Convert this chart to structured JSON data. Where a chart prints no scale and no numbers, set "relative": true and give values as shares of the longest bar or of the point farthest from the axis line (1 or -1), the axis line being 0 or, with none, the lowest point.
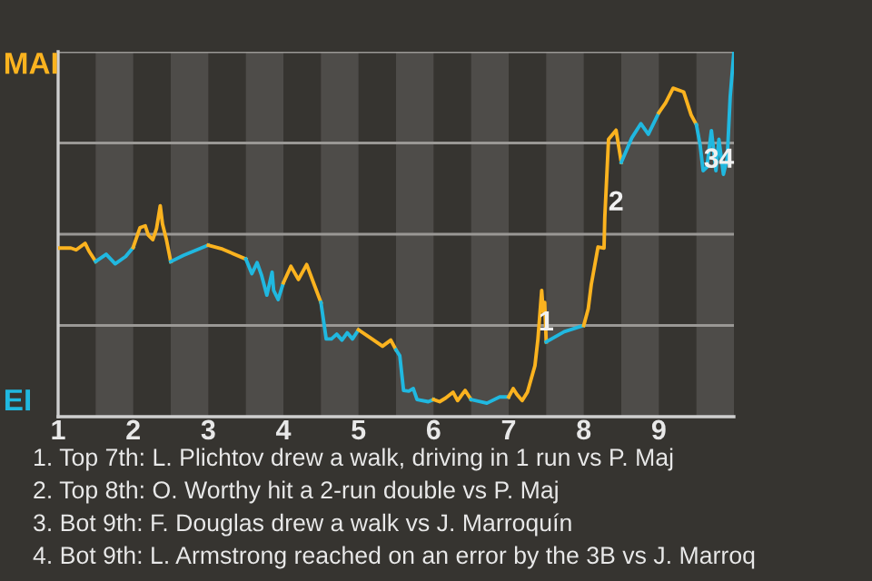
{
  "chart_data": {
    "type": "line",
    "relative": true,
    "xlim": [
      1,
      10
    ],
    "xticks": [
      1,
      2,
      3,
      4,
      5,
      6,
      7,
      8,
      9
    ],
    "marker": "none",
    "line_style": "solid",
    "series": [
      {
        "color": "#fbb31f",
        "x": [
          1,
          1.17,
          1.24,
          1.36,
          1.41,
          1.5
        ],
        "values": [
          0.462,
          0.462,
          0.457,
          0.475,
          0.454,
          0.425
        ]
      },
      {
        "color": "#20b8e0",
        "x": [
          1.5,
          1.64,
          1.76,
          1.9,
          2
        ],
        "values": [
          0.425,
          0.445,
          0.419,
          0.439,
          0.464
        ]
      },
      {
        "color": "#fbb31f",
        "x": [
          2,
          2.09,
          2.16,
          2.2,
          2.26,
          2.31,
          2.36,
          2.39,
          2.44,
          2.5
        ],
        "values": [
          0.464,
          0.518,
          0.523,
          0.498,
          0.485,
          0.515,
          0.578,
          0.528,
          0.487,
          0.425
        ]
      },
      {
        "color": "#20b8e0",
        "x": [
          2.5,
          2.67,
          3
        ],
        "values": [
          0.425,
          0.442,
          0.47
        ]
      },
      {
        "color": "#fbb31f",
        "x": [
          3,
          3.19,
          3.5
        ],
        "values": [
          0.47,
          0.459,
          0.432
        ]
      },
      {
        "color": "#20b8e0",
        "x": [
          3.5,
          3.58,
          3.65,
          3.71,
          3.78,
          3.85,
          3.87,
          3.93,
          4
        ],
        "values": [
          0.432,
          0.392,
          0.422,
          0.387,
          0.333,
          0.396,
          0.346,
          0.321,
          0.367
        ]
      },
      {
        "color": "#fbb31f",
        "x": [
          4,
          4.1,
          4.2,
          4.31,
          4.41,
          4.5
        ],
        "values": [
          0.367,
          0.412,
          0.376,
          0.417,
          0.362,
          0.313
        ]
      },
      {
        "color": "#20b8e0",
        "x": [
          4.5,
          4.57,
          4.64,
          4.71,
          4.78,
          4.85,
          4.92,
          5
        ],
        "values": [
          0.313,
          0.213,
          0.213,
          0.226,
          0.21,
          0.23,
          0.213,
          0.238
        ]
      },
      {
        "color": "#fbb31f",
        "x": [
          5,
          5.18,
          5.32,
          5.43,
          5.5
        ],
        "values": [
          0.238,
          0.213,
          0.193,
          0.21,
          0.183
        ]
      },
      {
        "color": "#20b8e0",
        "x": [
          5.5,
          5.55,
          5.6,
          5.67,
          5.73,
          5.78,
          5.93,
          6
        ],
        "values": [
          0.183,
          0.167,
          0.072,
          0.07,
          0.077,
          0.047,
          0.041,
          0.047
        ]
      },
      {
        "color": "#fbb31f",
        "x": [
          6,
          6.08,
          6.16,
          6.26,
          6.32,
          6.42,
          6.5
        ],
        "values": [
          0.047,
          0.041,
          0.051,
          0.067,
          0.044,
          0.072,
          0.047
        ]
      },
      {
        "color": "#20b8e0",
        "x": [
          6.5,
          6.71,
          6.88,
          7
        ],
        "values": [
          0.047,
          0.037,
          0.054,
          0.054
        ]
      },
      {
        "color": "#fbb31f",
        "x": [
          7,
          7.06,
          7.11,
          7.18,
          7.25,
          7.35,
          7.39,
          7.44,
          7.46,
          7.48,
          7.5
        ],
        "values": [
          0.054,
          0.077,
          0.061,
          0.044,
          0.067,
          0.14,
          0.213,
          0.346,
          0.288,
          0.313,
          0.205
        ]
      },
      {
        "color": "#20b8e0",
        "x": [
          7.5,
          7.74,
          8
        ],
        "values": [
          0.205,
          0.233,
          0.25
        ]
      },
      {
        "color": "#fbb31f",
        "x": [
          8,
          8.06,
          8.1,
          8.19,
          8.27,
          8.28,
          8.33,
          8.43,
          8.5
        ],
        "values": [
          0.25,
          0.296,
          0.362,
          0.465,
          0.462,
          0.545,
          0.76,
          0.785,
          0.697
        ]
      },
      {
        "color": "#20b8e0",
        "x": [
          8.5,
          8.64,
          8.76,
          8.86,
          9
        ],
        "values": [
          0.697,
          0.764,
          0.803,
          0.774,
          0.833
        ]
      },
      {
        "color": "#fbb31f",
        "x": [
          9,
          9.09,
          9.19,
          9.33,
          9.43,
          9.5
        ],
        "values": [
          0.833,
          0.86,
          0.9,
          0.89,
          0.827,
          0.8
        ]
      },
      {
        "color": "#20b8e0",
        "x": [
          9.5,
          9.55,
          9.59,
          9.64,
          9.7,
          9.76,
          9.8,
          9.86,
          9.91,
          9.95,
          10
        ],
        "values": [
          0.8,
          0.744,
          0.674,
          0.684,
          0.784,
          0.674,
          0.76,
          0.664,
          0.707,
          0.876,
          1
        ]
      }
    ],
    "ref_lines": [
      {
        "axis": "y",
        "value": 0.25,
        "color": "#9a9895"
      },
      {
        "axis": "y",
        "value": 0.5,
        "color": "#9a9895"
      },
      {
        "axis": "y",
        "value": 0.75,
        "color": "#9a9895"
      },
      {
        "axis": "y",
        "value": 1,
        "color": "#9a9895"
      }
    ],
    "bands": [
      {
        "axis": "x",
        "from": 1.5,
        "to": 2,
        "color": "#4e4c49"
      },
      {
        "axis": "x",
        "from": 2.5,
        "to": 3,
        "color": "#4e4c49"
      },
      {
        "axis": "x",
        "from": 3.5,
        "to": 4,
        "color": "#4e4c49"
      },
      {
        "axis": "x",
        "from": 4.5,
        "to": 5,
        "color": "#4e4c49"
      },
      {
        "axis": "x",
        "from": 5.5,
        "to": 6,
        "color": "#4e4c49"
      },
      {
        "axis": "x",
        "from": 6.5,
        "to": 7,
        "color": "#4e4c49"
      },
      {
        "axis": "x",
        "from": 7.5,
        "to": 8,
        "color": "#4e4c49"
      },
      {
        "axis": "x",
        "from": 8.5,
        "to": 9,
        "color": "#4e4c49"
      },
      {
        "axis": "x",
        "from": 9.5,
        "to": 10,
        "color": "#4e4c49"
      }
    ],
    "annotations": [
      "MAI",
      "EI",
      {
        "text": "1",
        "x": 7.5,
        "y": 0.256
      },
      {
        "text": "2",
        "x": 8.43,
        "y": 0.585
      },
      {
        "text": "3",
        "x": 9.7,
        "y": 0.702
      },
      {
        "text": "4",
        "x": 9.9,
        "y": 0.702
      },
      "1. Top 7th: L. Plichtov drew a walk, driving in 1 run vs P. Maj",
      "2. Top 8th: O. Worthy hit a 2-run double vs P. Maj",
      "3. Bot 9th: F. Douglas drew a walk vs J. Marroquín",
      "4. Bot 9th: L. Armstrong reached on an error by the 3B vs J. Marroq"
    ]
  }
}
